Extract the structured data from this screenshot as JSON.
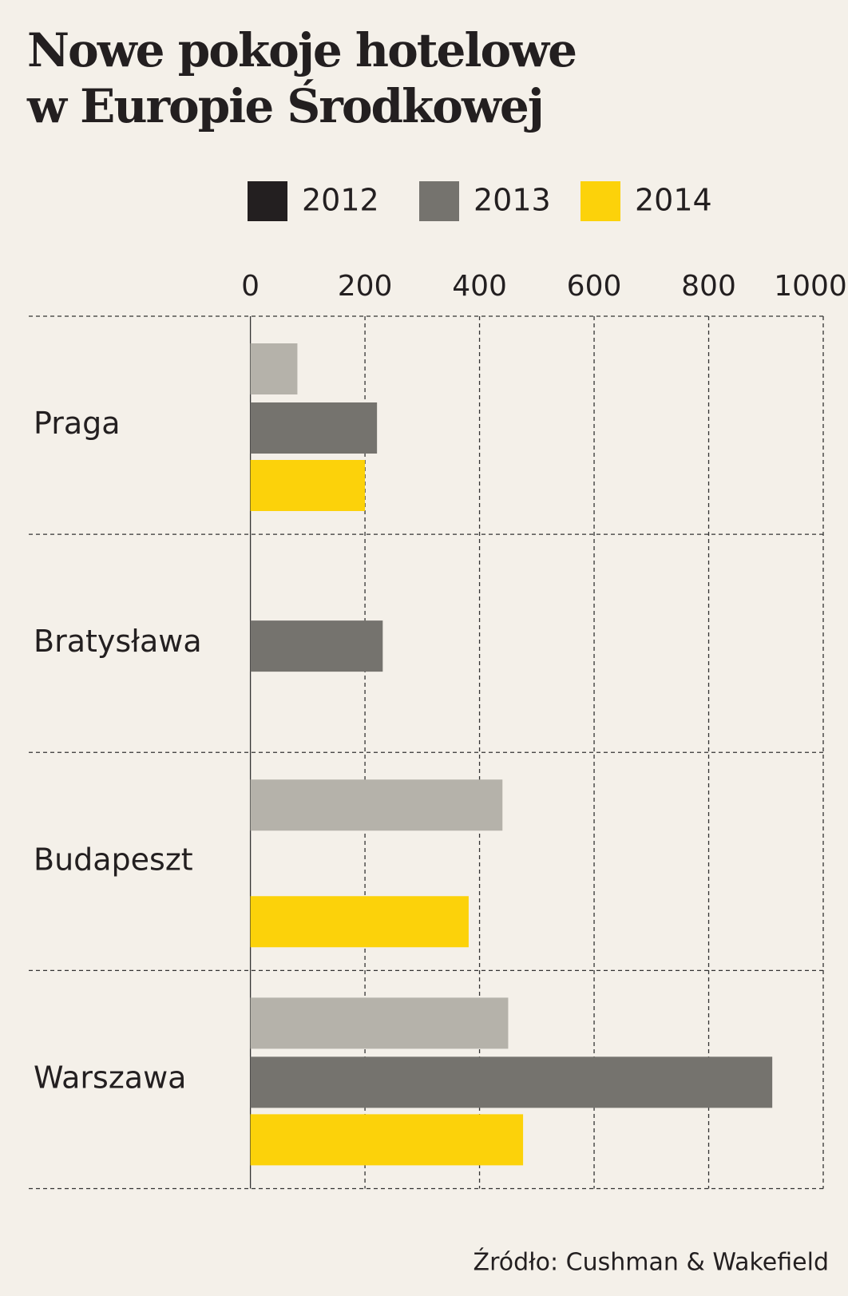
{
  "chart_data": {
    "type": "bar",
    "orientation": "horizontal",
    "title": [
      "Nowe pokoje hotelowe",
      "w Europie Środkowej"
    ],
    "categories": [
      "Praga",
      "Bratysława",
      "Budapeszt",
      "Warszawa"
    ],
    "series": [
      {
        "name": "2012",
        "color": "#b5b2aa",
        "legend_color": "#231f20",
        "values": [
          82,
          null,
          440,
          450
        ]
      },
      {
        "name": "2013",
        "color": "#75736e",
        "legend_color": "#75736e",
        "values": [
          221,
          231,
          null,
          911
        ]
      },
      {
        "name": "2014",
        "color": "#fcd20a",
        "legend_color": "#fcd20a",
        "values": [
          200,
          null,
          381,
          476
        ]
      }
    ],
    "xlim": [
      0,
      1000
    ],
    "xticks": [
      0,
      200,
      400,
      600,
      800,
      1000
    ],
    "grid": true,
    "source": "Źródło: Cushman & Wakefield"
  }
}
